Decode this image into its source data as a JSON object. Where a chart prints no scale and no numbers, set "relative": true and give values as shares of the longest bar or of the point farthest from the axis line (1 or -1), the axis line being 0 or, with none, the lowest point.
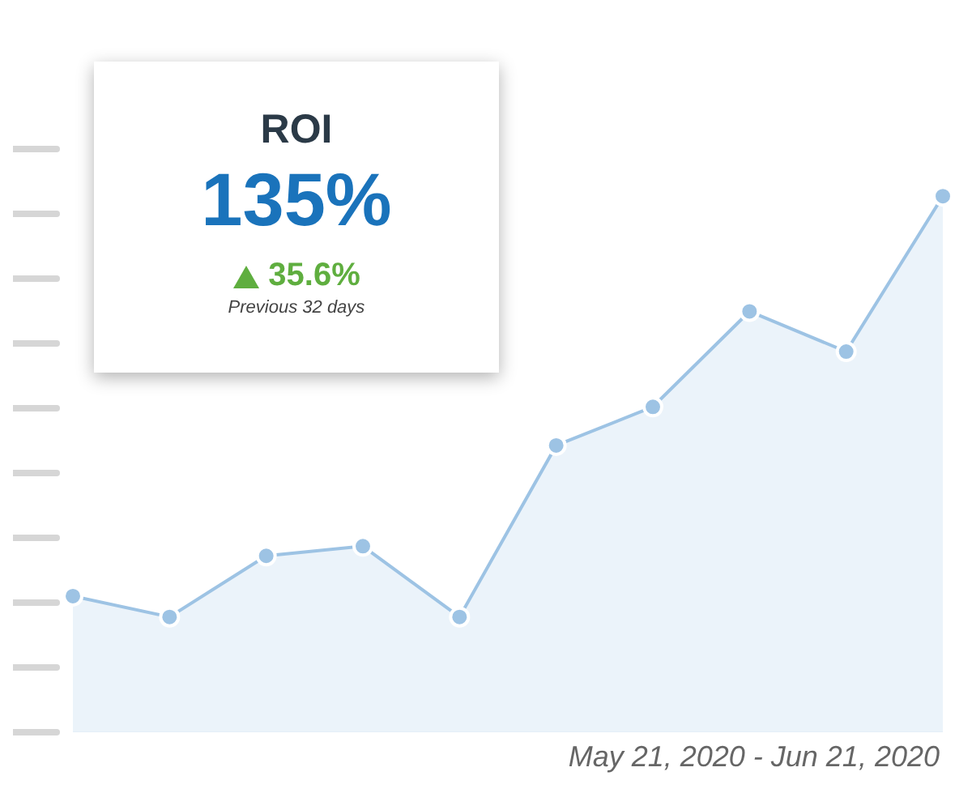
{
  "chart_data": {
    "type": "area",
    "relative": true,
    "categories": [
      null,
      null,
      null,
      null,
      null,
      null,
      null,
      null,
      null,
      null
    ],
    "series": [
      {
        "color": "#9dc3e4",
        "values": [
          0.254,
          0.215,
          0.329,
          0.347,
          0.215,
          0.535,
          0.607,
          0.785,
          0.71,
          1
        ]
      }
    ],
    "marker": "circle",
    "grid": false,
    "legend": false,
    "annotations": [
      "ROI",
      "135%",
      "35.6%",
      "Previous 32 days",
      "May 21, 2020 - Jun 21, 2020"
    ]
  }
}
